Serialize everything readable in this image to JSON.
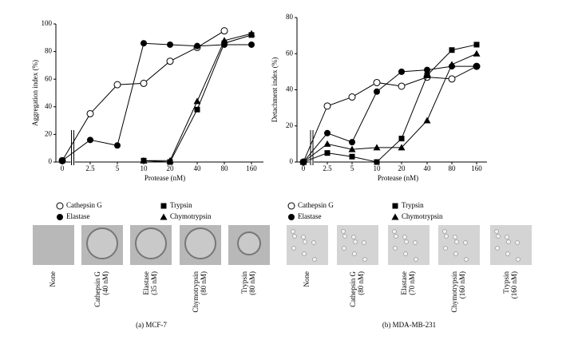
{
  "chart_data": [
    {
      "type": "line",
      "ylabel": "Aggregation index (%)",
      "xlabel": "Protease (nM)",
      "categories": [
        "0",
        "2.5",
        "5",
        "10",
        "20",
        "40",
        "80",
        "160"
      ],
      "ylim": [
        0,
        100
      ],
      "yticks": [
        0,
        20,
        40,
        60,
        80,
        100
      ],
      "series": [
        {
          "name": "Cathepsin G",
          "color": "#000000",
          "marker": "open-circle",
          "values": [
            1,
            35,
            56,
            57,
            73,
            83,
            95,
            null
          ]
        },
        {
          "name": "Elastase",
          "color": "#000000",
          "marker": "circle",
          "values": [
            1,
            16,
            12,
            86,
            85,
            84,
            85,
            85
          ]
        },
        {
          "name": "Trypsin",
          "color": "#000000",
          "marker": "square",
          "values": [
            1,
            null,
            null,
            1,
            0,
            38,
            86,
            92
          ]
        },
        {
          "name": "Chymotrypsin",
          "color": "#000000",
          "marker": "triangle",
          "values": [
            null,
            null,
            null,
            1,
            1,
            44,
            88,
            93
          ]
        }
      ]
    },
    {
      "type": "line",
      "ylabel": "Detachment index (%)",
      "xlabel": "Protease (nM)",
      "categories": [
        "0",
        "2.5",
        "5",
        "10",
        "20",
        "40",
        "80",
        "160"
      ],
      "ylim": [
        0,
        80
      ],
      "yticks": [
        0,
        20,
        40,
        60,
        80
      ],
      "series": [
        {
          "name": "Cathepsin G",
          "color": "#000000",
          "marker": "open-circle",
          "values": [
            0,
            31,
            36,
            44,
            42,
            47,
            46,
            53
          ]
        },
        {
          "name": "Elastase",
          "color": "#000000",
          "marker": "circle",
          "values": [
            0,
            16,
            11,
            39,
            50,
            51,
            53,
            53
          ]
        },
        {
          "name": "Trypsin",
          "color": "#000000",
          "marker": "square",
          "values": [
            0,
            5,
            3,
            0,
            13,
            48,
            62,
            65
          ]
        },
        {
          "name": "Chymotrypsin",
          "color": "#000000",
          "marker": "triangle",
          "values": [
            0,
            10,
            7,
            8,
            8,
            23,
            54,
            60
          ]
        }
      ]
    }
  ],
  "panels": [
    {
      "caption": "(a)  MCF-7",
      "images": [
        [
          "None"
        ],
        [
          "Cathepsin G",
          "(40 nM)"
        ],
        [
          "Elastase",
          "(35 nM)"
        ],
        [
          "Chymotrypsin",
          "(80 nM)"
        ],
        [
          "Trypsin",
          "(80 nM)"
        ]
      ]
    },
    {
      "caption": "(b)  MDA-MB-231",
      "images": [
        [
          "None"
        ],
        [
          "Cathepsin G",
          "(80 nM)"
        ],
        [
          "Elastase",
          "(70 nM)"
        ],
        [
          "Chymotrypsin",
          "(160 nM)"
        ],
        [
          "Trypsin",
          "(160 nM)"
        ]
      ]
    }
  ]
}
